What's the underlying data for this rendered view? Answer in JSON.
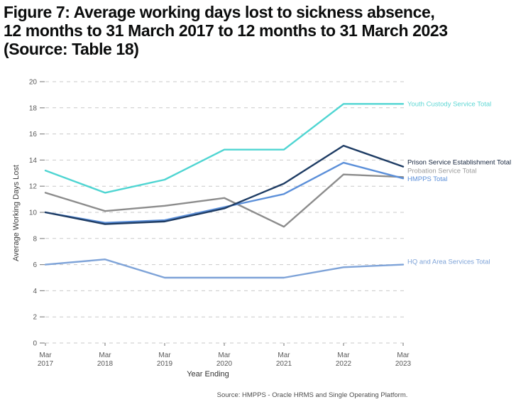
{
  "title": {
    "line1": "Figure 7: Average working days lost to sickness absence,",
    "line2": "12 months to 31 March 2017 to 12 months to 31 March 2023",
    "line3": "(Source: Table 18)"
  },
  "footer": {
    "source": "Source: HMPPS - Oracle HRMS and Single Operating Platform."
  },
  "chart_data": {
    "type": "line",
    "title": "",
    "xlabel": "Year Ending",
    "ylabel": "Average Working Days Lost",
    "ylim": [
      0,
      20
    ],
    "y_ticks": [
      0,
      2,
      4,
      6,
      8,
      10,
      12,
      14,
      16,
      18,
      20
    ],
    "grid": "horizontal-dashed",
    "legend_position": "right-end-labels",
    "categories": [
      "Mar 2017",
      "Mar 2018",
      "Mar 2019",
      "Mar 2020",
      "Mar 2021",
      "Mar 2022",
      "Mar 2023"
    ],
    "series": [
      {
        "name": "Youth Custody Service Total",
        "color": "#4fd5d2",
        "label_color": "#5ed7d4",
        "values": [
          13.2,
          11.5,
          12.5,
          14.8,
          14.8,
          18.3,
          18.3
        ]
      },
      {
        "name": "Prison Service Establishment Total",
        "color": "#1e3c64",
        "label_color": "#14233c",
        "values": [
          10.0,
          9.1,
          9.3,
          10.3,
          12.2,
          15.1,
          13.5
        ]
      },
      {
        "name": "Probation Service Total",
        "color": "#8c8c8c",
        "label_color": "#9b9b9b",
        "values": [
          11.5,
          10.1,
          10.5,
          11.1,
          8.9,
          12.9,
          12.7
        ]
      },
      {
        "name": "HMPPS Total",
        "color": "#5b8fd9",
        "label_color": "#5b8fd9",
        "values": [
          10.0,
          9.2,
          9.4,
          10.4,
          11.4,
          13.8,
          12.6
        ]
      },
      {
        "name": "HQ and Area Services Total",
        "color": "#7ea3d8",
        "label_color": "#7ea3d8",
        "values": [
          6.0,
          6.4,
          5.0,
          5.0,
          5.0,
          5.8,
          6.0
        ]
      }
    ],
    "colors": {
      "gridline": "#c9c9c9",
      "tick": "#8a8a8a",
      "tick_label": "#595959",
      "axis_title": "#3d3d3d",
      "source_note": "#4d4d4d"
    }
  }
}
